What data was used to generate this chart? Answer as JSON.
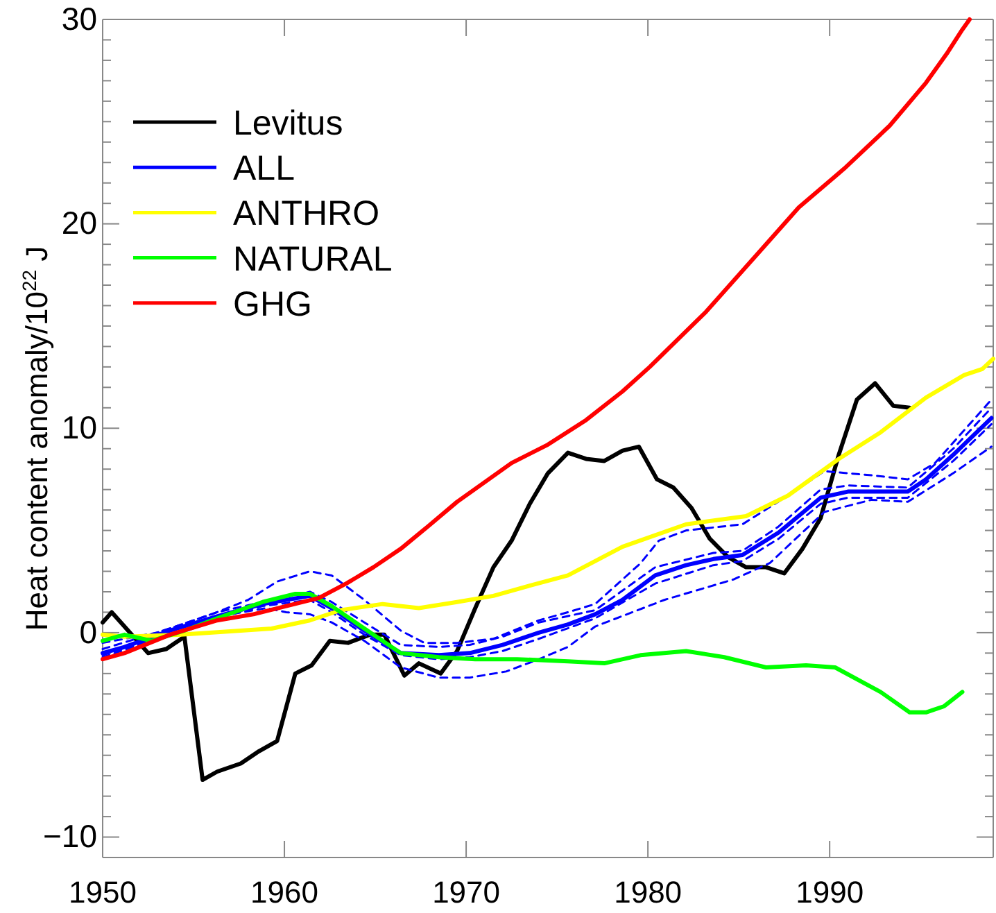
{
  "chart_data": {
    "type": "line",
    "ylabel": "Heat content anomaly/10$^{22}$ J",
    "xlim": [
      1950,
      1999
    ],
    "xticks": [
      1950,
      1960,
      1970,
      1980,
      1990
    ],
    "ylim": [
      -11,
      30
    ],
    "yticks": [
      {
        "value": -11,
        "label": null
      },
      -10,
      {
        "value": -9,
        "label": null
      },
      {
        "value": -8,
        "label": null
      },
      {
        "value": -7,
        "label": null
      },
      {
        "value": -6,
        "label": null
      },
      {
        "value": -5,
        "label": null
      },
      {
        "value": -4,
        "label": null
      },
      {
        "value": -3,
        "label": null
      },
      {
        "value": -2,
        "label": null
      },
      {
        "value": -1,
        "label": null
      },
      0,
      {
        "value": 1,
        "label": null
      },
      {
        "value": 2,
        "label": null
      },
      {
        "value": 3,
        "label": null
      },
      {
        "value": 4,
        "label": null
      },
      {
        "value": 5,
        "label": null
      },
      {
        "value": 6,
        "label": null
      },
      {
        "value": 7,
        "label": null
      },
      {
        "value": 8,
        "label": null
      },
      {
        "value": 9,
        "label": null
      },
      10,
      {
        "value": 11,
        "label": null
      },
      {
        "value": 12,
        "label": null
      },
      {
        "value": 13,
        "label": null
      },
      {
        "value": 14,
        "label": null
      },
      {
        "value": 15,
        "label": null
      },
      {
        "value": 16,
        "label": null
      },
      {
        "value": 17,
        "label": null
      },
      {
        "value": 18,
        "label": null
      },
      {
        "value": 19,
        "label": null
      },
      20,
      {
        "value": 21,
        "label": null
      },
      {
        "value": 22,
        "label": null
      },
      {
        "value": 23,
        "label": null
      },
      {
        "value": 24,
        "label": null
      },
      {
        "value": 25,
        "label": null
      },
      {
        "value": 26,
        "label": null
      },
      {
        "value": 27,
        "label": null
      },
      {
        "value": 28,
        "label": null
      },
      {
        "value": 29,
        "label": null
      },
      30
    ],
    "grid": false,
    "legend": "top left",
    "line_style": "solid",
    "marker": "none",
    "series": [
      {
        "name": "Levitus",
        "color": "#000000",
        "x": [
          1950,
          1950.5,
          1951.2,
          1952.5,
          1953.5,
          1954.5,
          1955.5,
          1956.3,
          1957.6,
          1958.6,
          1959.6,
          1960.6,
          1961.5,
          1962.5,
          1963.5,
          1964.7,
          1965.5,
          1966.6,
          1967.4,
          1968.6,
          1969.5,
          1970.5,
          1971.5,
          1972.5,
          1973.5,
          1974.5,
          1975.6,
          1976.6,
          1977.6,
          1978.6,
          1979.5,
          1980.5,
          1981.4,
          1982.4,
          1983.4,
          1984.4,
          1985.4,
          1986.5,
          1987.5,
          1988.5,
          1989.5,
          1990.5,
          1991.5,
          1992.5,
          1993.5,
          1994.4
        ],
        "values": [
          0.5,
          1.0,
          0.3,
          -1.0,
          -0.8,
          -0.2,
          -7.2,
          -6.8,
          -6.4,
          -5.8,
          -5.3,
          -2.0,
          -1.6,
          -0.4,
          -0.5,
          -0.1,
          -0.1,
          -2.1,
          -1.5,
          -2.0,
          -0.9,
          1.2,
          3.2,
          4.5,
          6.3,
          7.8,
          8.8,
          8.5,
          8.4,
          8.9,
          9.1,
          7.5,
          7.1,
          6.1,
          4.6,
          3.7,
          3.2,
          3.2,
          2.9,
          4.1,
          5.6,
          8.7,
          11.4,
          12.2,
          11.1,
          11.0
        ]
      },
      {
        "color": "#0000ff",
        "line_style": "dashed",
        "x": [
          1950,
          1953,
          1956,
          1958,
          1959.6,
          1961.4,
          1962.6,
          1964.4,
          1966.4,
          1967.7,
          1969.5,
          1971.5,
          1974.0,
          1975.6,
          1977.1,
          1979.6,
          1980.6,
          1982.1,
          1985.2,
          1987.7,
          1989.7,
          1992.3,
          1994.3,
          1995.8,
          1998.9
        ],
        "values": [
          -0.5,
          0.0,
          0.9,
          1.6,
          2.5,
          3.0,
          2.8,
          1.6,
          0.1,
          -0.5,
          -0.5,
          -0.3,
          0.6,
          1.0,
          1.4,
          3.4,
          4.5,
          5.0,
          5.3,
          6.7,
          7.9,
          7.7,
          7.5,
          8.3,
          11.4
        ]
      },
      {
        "color": "#0000ff",
        "line_style": "dashed",
        "x": [
          1950,
          1954,
          1957,
          1959,
          1960.1,
          1961.4,
          1962.6,
          1964.4,
          1966.4,
          1968.5,
          1970.2,
          1972.2,
          1974.0,
          1975.6,
          1977.1,
          1980.9,
          1984.7,
          1986.7,
          1989.7,
          1992.3,
          1994.3,
          1996.8,
          1998.9
        ],
        "values": [
          -1.2,
          0.0,
          0.9,
          1.2,
          1.0,
          0.9,
          0.5,
          -0.4,
          -1.7,
          -2.2,
          -2.2,
          -1.9,
          -1.3,
          -0.7,
          0.3,
          1.6,
          2.6,
          3.4,
          5.9,
          6.5,
          6.4,
          7.8,
          9.1
        ]
      },
      {
        "color": "#0000ff",
        "line_style": "dashed",
        "x": [
          1950,
          1953.7,
          1956.3,
          1958.8,
          1961.4,
          1962.6,
          1964.4,
          1966.4,
          1968.5,
          1970.2,
          1972.0,
          1974.0,
          1977.1,
          1980.4,
          1983.6,
          1985.2,
          1987.2,
          1989.5,
          1991.0,
          1994.3,
          1996.8,
          1998.9
        ],
        "values": [
          -0.8,
          0.2,
          1.0,
          1.5,
          2.0,
          1.5,
          0.5,
          -0.6,
          -0.7,
          -0.6,
          -0.2,
          0.5,
          1.1,
          3.2,
          3.9,
          4.0,
          5.2,
          7.0,
          7.2,
          7.1,
          9.0,
          11.0
        ]
      },
      {
        "color": "#0000ff",
        "line_style": "dashed",
        "x": [
          1950,
          1953.7,
          1956.3,
          1958.8,
          1961.4,
          1962.6,
          1964.4,
          1966.4,
          1968.5,
          1970.2,
          1972.0,
          1974.0,
          1977.1,
          1980.4,
          1983.6,
          1985.2,
          1987.2,
          1989.5,
          1991.0,
          1994.3,
          1996.8,
          1998.9
        ],
        "values": [
          -1.1,
          -0.1,
          0.7,
          1.3,
          1.6,
          1.0,
          -0.1,
          -1.1,
          -1.3,
          -1.2,
          -0.9,
          -0.3,
          0.7,
          2.4,
          3.3,
          3.5,
          4.6,
          6.3,
          6.6,
          6.6,
          8.4,
          10.2
        ]
      },
      {
        "name": "ALL",
        "color": "#0000ff",
        "x": [
          1950,
          1951.2,
          1953.7,
          1956.3,
          1958.8,
          1961.4,
          1962.6,
          1964.4,
          1966.4,
          1968.5,
          1970.2,
          1972.0,
          1974.0,
          1975.6,
          1977.1,
          1978.6,
          1980.4,
          1982.1,
          1983.6,
          1985.2,
          1987.2,
          1989.5,
          1991.0,
          1994.3,
          1995.3,
          1996.8,
          1998.9
        ],
        "values": [
          -1.0,
          -0.7,
          0.1,
          0.8,
          1.4,
          1.8,
          1.2,
          0.1,
          -1.0,
          -1.1,
          -1.0,
          -0.6,
          0.0,
          0.4,
          0.9,
          1.6,
          2.8,
          3.3,
          3.6,
          3.8,
          4.9,
          6.6,
          6.9,
          6.9,
          7.5,
          8.7,
          10.5
        ]
      },
      {
        "name": "ANTHRO",
        "color": "#ffff00",
        "x": [
          1950,
          1951.2,
          1954.3,
          1957.6,
          1959.3,
          1961.4,
          1963.1,
          1965.4,
          1967.4,
          1969.5,
          1971.5,
          1973.5,
          1975.6,
          1978.6,
          1982.1,
          1985.4,
          1987.7,
          1990.5,
          1992.8,
          1995.3,
          1997.4,
          1998.4,
          1999
        ],
        "values": [
          -0.1,
          -0.2,
          -0.1,
          0.1,
          0.2,
          0.6,
          1.1,
          1.4,
          1.2,
          1.5,
          1.8,
          2.3,
          2.8,
          4.2,
          5.3,
          5.7,
          6.7,
          8.5,
          9.8,
          11.5,
          12.6,
          12.9,
          13.4
        ]
      },
      {
        "name": "NATURAL",
        "color": "#00ff00",
        "x": [
          1950,
          1951.2,
          1952.7,
          1954.5,
          1956.3,
          1958.8,
          1960.6,
          1961.4,
          1962.6,
          1964.4,
          1966.4,
          1968.5,
          1970.5,
          1972.8,
          1975.6,
          1977.6,
          1979.6,
          1982.1,
          1984.2,
          1986.5,
          1988.7,
          1990.3,
          1992.8,
          1994.4,
          1995.3,
          1996.3,
          1997.3
        ],
        "values": [
          -0.4,
          -0.1,
          -0.4,
          0.1,
          0.7,
          1.5,
          1.9,
          1.9,
          1.3,
          0.2,
          -1.0,
          -1.2,
          -1.3,
          -1.3,
          -1.4,
          -1.5,
          -1.1,
          -0.9,
          -1.2,
          -1.7,
          -1.6,
          -1.7,
          -2.9,
          -3.9,
          -3.9,
          -3.6,
          -2.9
        ]
      },
      {
        "name": "GHG",
        "color": "#ff0000",
        "x": [
          1950,
          1951.2,
          1953.7,
          1956.3,
          1958.3,
          1960.1,
          1961.9,
          1963.4,
          1964.9,
          1966.4,
          1967.9,
          1969.5,
          1972.5,
          1974.5,
          1976.6,
          1978.6,
          1980.1,
          1983.2,
          1986.2,
          1988.3,
          1990.8,
          1993.3,
          1995.3,
          1996.5,
          1997.3,
          1997.7
        ],
        "values": [
          -1.3,
          -1.0,
          -0.1,
          0.6,
          0.9,
          1.3,
          1.7,
          2.4,
          3.2,
          4.1,
          5.2,
          6.4,
          8.3,
          9.2,
          10.4,
          11.8,
          13.0,
          15.7,
          18.7,
          20.8,
          22.7,
          24.8,
          26.9,
          28.4,
          29.5,
          30.0
        ]
      }
    ]
  }
}
